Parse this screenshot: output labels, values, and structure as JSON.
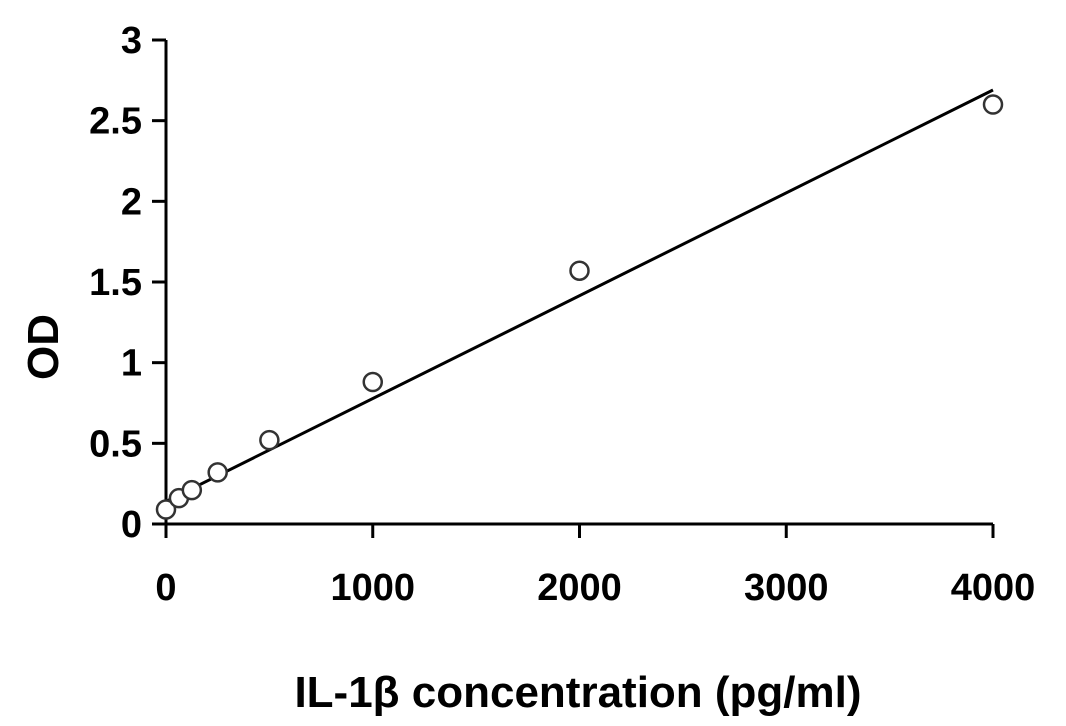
{
  "chart_data": {
    "type": "scatter",
    "title": "",
    "xlabel": "IL-1β concentration (pg/ml)",
    "ylabel": "OD",
    "xlim": [
      0,
      4000
    ],
    "ylim": [
      0,
      3
    ],
    "xticks": [
      0,
      1000,
      2000,
      3000,
      4000
    ],
    "yticks": [
      0,
      0.5,
      1,
      1.5,
      2,
      2.5,
      3
    ],
    "xtick_labels": [
      "0",
      "1000",
      "2000",
      "3000",
      "4000"
    ],
    "ytick_labels": [
      "0",
      "0.5",
      "1",
      "1.5",
      "2",
      "2.5",
      "3"
    ],
    "grid": false,
    "legend": "none",
    "series": [
      {
        "marker": "open-circle",
        "x": [
          0,
          62.5,
          125,
          250,
          500,
          1000,
          2000,
          4000
        ],
        "y": [
          0.09,
          0.16,
          0.21,
          0.32,
          0.52,
          0.88,
          1.57,
          2.6
        ]
      }
    ],
    "trendline": {
      "type": "linear",
      "x": [
        0,
        4000
      ],
      "y": [
        0.14,
        2.69
      ]
    },
    "colors": {
      "axis": "#000000",
      "marker_stroke": "#333333",
      "marker_fill": "#ffffff",
      "line": "#000000"
    }
  }
}
